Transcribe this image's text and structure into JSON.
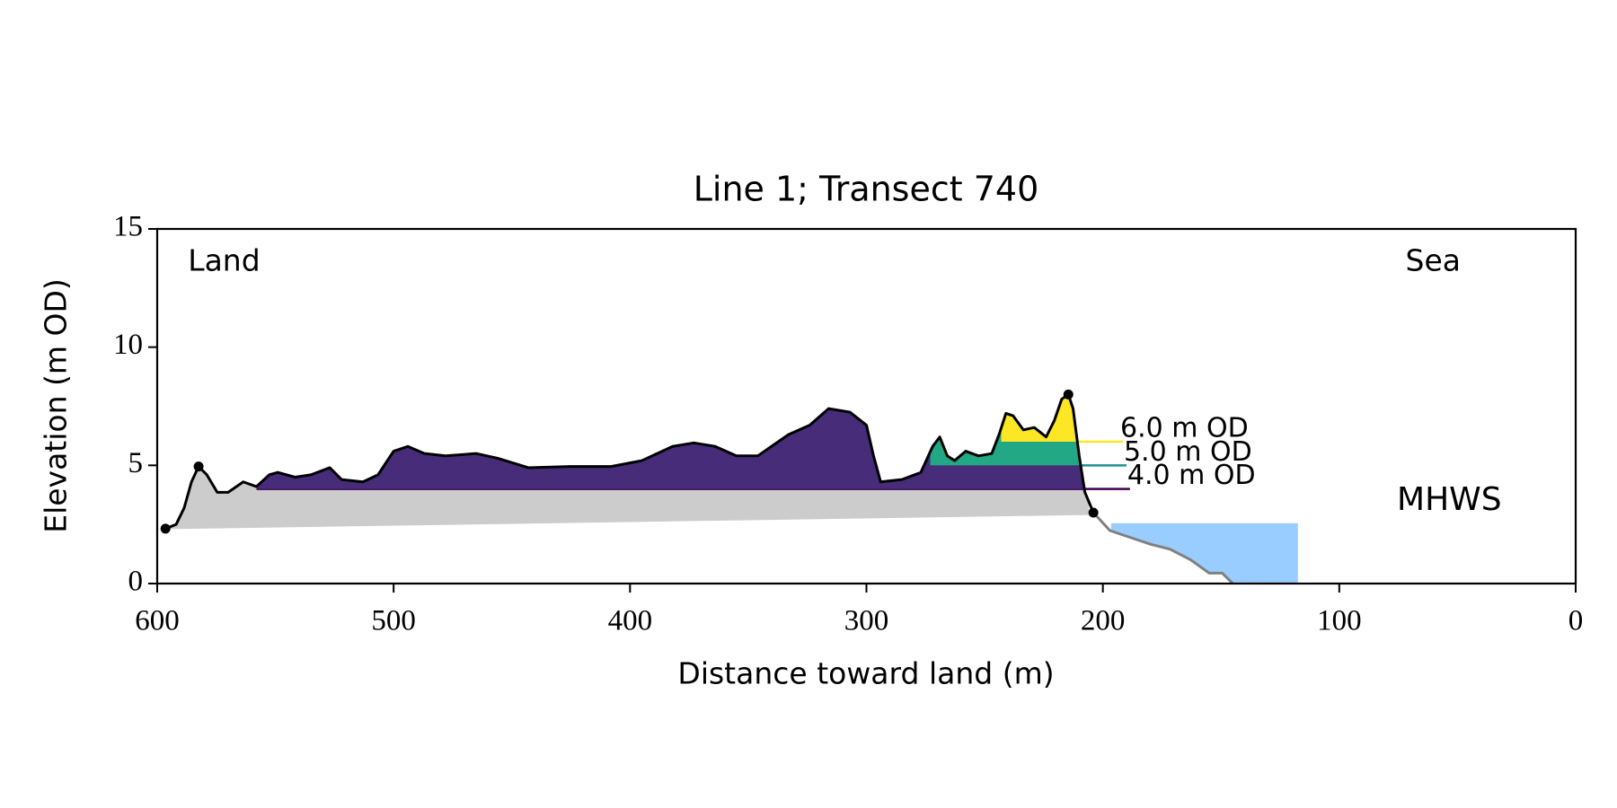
{
  "chart_data": {
    "type": "transect",
    "title": "Line 1; Transect 740",
    "xlabel": "Distance toward land (m)",
    "ylabel": "Elevation (m OD)",
    "xlim": [
      600,
      0
    ],
    "ylim": [
      0,
      15
    ],
    "xticks": [
      600,
      500,
      400,
      300,
      200,
      100,
      0
    ],
    "yticks": [
      0,
      5,
      10,
      15
    ],
    "series": [
      {
        "name": "land profile",
        "color": "#000000",
        "x": [
          596.5,
          592,
          588.6,
          585.5,
          582.5,
          579,
          574.6,
          570,
          563.6,
          558,
          552.6,
          549,
          541.7,
          535,
          527,
          522,
          513,
          506.6,
          500,
          494,
          487,
          478,
          465,
          456,
          443,
          425.4,
          408,
          395,
          382,
          373,
          364,
          355,
          346,
          333,
          324,
          316,
          307,
          300,
          297,
          294,
          285,
          277,
          272,
          269,
          265.8,
          262.7,
          258,
          252.6,
          247,
          243.9,
          241,
          238,
          233.6,
          229,
          224,
          220.5,
          217.4,
          214.6,
          212.6,
          210,
          207.6,
          204
        ],
        "values": [
          2.32,
          2.5,
          3.2,
          4.3,
          4.95,
          4.6,
          3.86,
          3.86,
          4.3,
          4.1,
          4.6,
          4.7,
          4.5,
          4.6,
          4.9,
          4.4,
          4.3,
          4.6,
          5.6,
          5.8,
          5.5,
          5.4,
          5.5,
          5.3,
          4.9,
          4.95,
          4.95,
          5.2,
          5.8,
          5.95,
          5.8,
          5.4,
          5.4,
          6.3,
          6.7,
          7.4,
          7.25,
          6.7,
          5.4,
          4.3,
          4.4,
          4.7,
          5.8,
          6.2,
          5.4,
          5.2,
          5.6,
          5.4,
          5.5,
          6.3,
          7.2,
          7.1,
          6.5,
          6.6,
          6.2,
          6.9,
          7.8,
          8.0,
          7.4,
          5.4,
          3.86,
          3.0
        ]
      },
      {
        "name": "seaward profile",
        "color": "#808080",
        "x": [
          204,
          197,
          189,
          180,
          171.5,
          162.8,
          155,
          149.5,
          145
        ],
        "values": [
          3.0,
          2.24,
          1.97,
          1.67,
          1.45,
          1.0,
          0.44,
          0.44,
          0
        ]
      }
    ],
    "markers": {
      "x": [
        596.5,
        582.5,
        214.6,
        204
      ],
      "values": [
        2.32,
        4.95,
        8.0,
        3.0
      ],
      "color": "#000000"
    },
    "base": {
      "x": [
        596.5,
        206
      ],
      "values": [
        2.3,
        2.9
      ],
      "color": "#cccccc"
    },
    "levels": [
      {
        "label": "4.0 m OD",
        "value": 4,
        "xrange": [
          558,
          188.5
        ],
        "fill": "#472c7a",
        "color": "#440154"
      },
      {
        "label": "5.0 m OD",
        "value": 5,
        "xrange": [
          273,
          190
        ],
        "fill": "#22a884",
        "color": "#21918c"
      },
      {
        "label": "6.0 m OD",
        "value": 6,
        "xrange": [
          243,
          191.5
        ],
        "fill": "#fde725",
        "color": "#fde725"
      }
    ],
    "mhws": {
      "label": "MHWS",
      "value": 2.55,
      "xrange": [
        196.5,
        117.5
      ],
      "fill": "#99ccff",
      "color": "#6699cc",
      "x": 75.6,
      "y": 3.5
    },
    "annotations": [
      {
        "text": "Land",
        "x": 587,
        "y": 13.6
      },
      {
        "text": "Sea",
        "x": 72,
        "y": 13.6
      }
    ]
  }
}
